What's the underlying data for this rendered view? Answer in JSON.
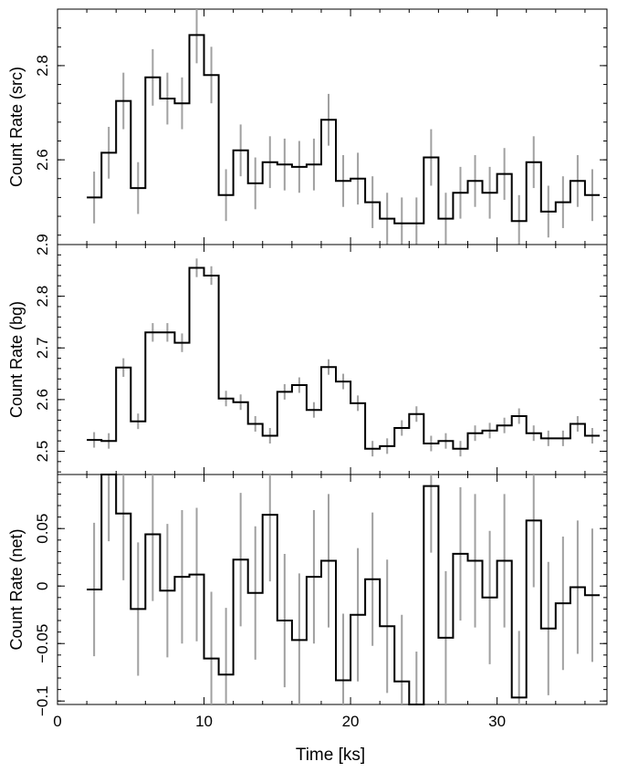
{
  "figure": {
    "xlabel": "Time [ks]"
  },
  "chart_data": [
    {
      "type": "line",
      "panel": "src",
      "ylabel": "Count Rate (src)",
      "xlim": [
        0,
        37.5
      ],
      "ylim": [
        2.42,
        2.92
      ],
      "x_ticks": [
        0,
        10,
        20,
        30
      ],
      "y_ticks": [
        2.6,
        2.8
      ],
      "y_tick_labels": [
        "2.6",
        "2.8"
      ],
      "bin_width": 1,
      "x_start": 2,
      "values": [
        2.52,
        2.615,
        2.725,
        2.54,
        2.775,
        2.73,
        2.72,
        2.865,
        2.78,
        2.525,
        2.62,
        2.55,
        2.595,
        2.59,
        2.585,
        2.59,
        2.685,
        2.555,
        2.56,
        2.51,
        2.475,
        2.465,
        2.465,
        2.605,
        2.475,
        2.53,
        2.555,
        2.53,
        2.57,
        2.47,
        2.595,
        2.49,
        2.51,
        2.555,
        2.525
      ],
      "errors": [
        0.055,
        0.055,
        0.06,
        0.055,
        0.06,
        0.055,
        0.055,
        0.06,
        0.06,
        0.055,
        0.055,
        0.055,
        0.055,
        0.055,
        0.055,
        0.055,
        0.055,
        0.055,
        0.055,
        0.055,
        0.055,
        0.055,
        0.055,
        0.06,
        0.055,
        0.055,
        0.055,
        0.055,
        0.055,
        0.055,
        0.055,
        0.055,
        0.055,
        0.055,
        0.055
      ]
    },
    {
      "type": "line",
      "panel": "bg",
      "ylabel": "Count Rate (bg)",
      "xlim": [
        0,
        37.5
      ],
      "ylim": [
        2.455,
        2.9
      ],
      "x_ticks": [
        0,
        10,
        20,
        30
      ],
      "y_ticks": [
        2.5,
        2.6,
        2.7,
        2.8,
        2.9
      ],
      "y_tick_labels": [
        "2.5",
        "2.6",
        "2.7",
        "2.8",
        "2.9"
      ],
      "bin_width": 1,
      "x_start": 2,
      "values": [
        2.522,
        2.52,
        2.662,
        2.558,
        2.73,
        2.73,
        2.71,
        2.855,
        2.84,
        2.602,
        2.595,
        2.553,
        2.53,
        2.615,
        2.628,
        2.58,
        2.663,
        2.635,
        2.593,
        2.505,
        2.51,
        2.545,
        2.572,
        2.515,
        2.52,
        2.505,
        2.535,
        2.54,
        2.55,
        2.568,
        2.535,
        2.525,
        2.525,
        2.553,
        2.53
      ],
      "errors": [
        0.015,
        0.015,
        0.018,
        0.015,
        0.018,
        0.018,
        0.018,
        0.018,
        0.018,
        0.015,
        0.015,
        0.015,
        0.015,
        0.015,
        0.015,
        0.015,
        0.015,
        0.015,
        0.015,
        0.015,
        0.015,
        0.015,
        0.015,
        0.015,
        0.015,
        0.015,
        0.015,
        0.015,
        0.015,
        0.015,
        0.015,
        0.015,
        0.015,
        0.015,
        0.015
      ]
    },
    {
      "type": "line",
      "panel": "net",
      "ylabel": "Count Rate (net)",
      "xlim": [
        0,
        37.5
      ],
      "ylim": [
        -0.103,
        0.097
      ],
      "x_ticks": [
        0,
        10,
        20,
        30
      ],
      "x_tick_labels": [
        "0",
        "10",
        "20",
        "30"
      ],
      "y_ticks": [
        -0.1,
        -0.05,
        0,
        0.05
      ],
      "y_tick_labels": [
        "−0.1",
        "−0.05",
        "0",
        "0.05"
      ],
      "bin_width": 1,
      "x_start": 2,
      "values": [
        -0.003,
        0.097,
        0.063,
        -0.02,
        0.045,
        -0.004,
        0.008,
        0.01,
        -0.063,
        -0.077,
        0.023,
        -0.006,
        0.062,
        -0.03,
        -0.047,
        0.008,
        0.022,
        -0.082,
        -0.025,
        0.006,
        -0.035,
        -0.083,
        -0.115,
        0.087,
        -0.045,
        0.028,
        0.022,
        -0.01,
        0.022,
        -0.097,
        0.057,
        -0.037,
        -0.015,
        -0.001,
        -0.008
      ],
      "errors": [
        0.058,
        0.058,
        0.058,
        0.058,
        0.058,
        0.058,
        0.058,
        0.058,
        0.058,
        0.058,
        0.058,
        0.058,
        0.058,
        0.058,
        0.058,
        0.058,
        0.058,
        0.058,
        0.058,
        0.058,
        0.058,
        0.058,
        0.058,
        0.058,
        0.058,
        0.058,
        0.058,
        0.058,
        0.058,
        0.058,
        0.058,
        0.058,
        0.058,
        0.058,
        0.058
      ]
    }
  ]
}
